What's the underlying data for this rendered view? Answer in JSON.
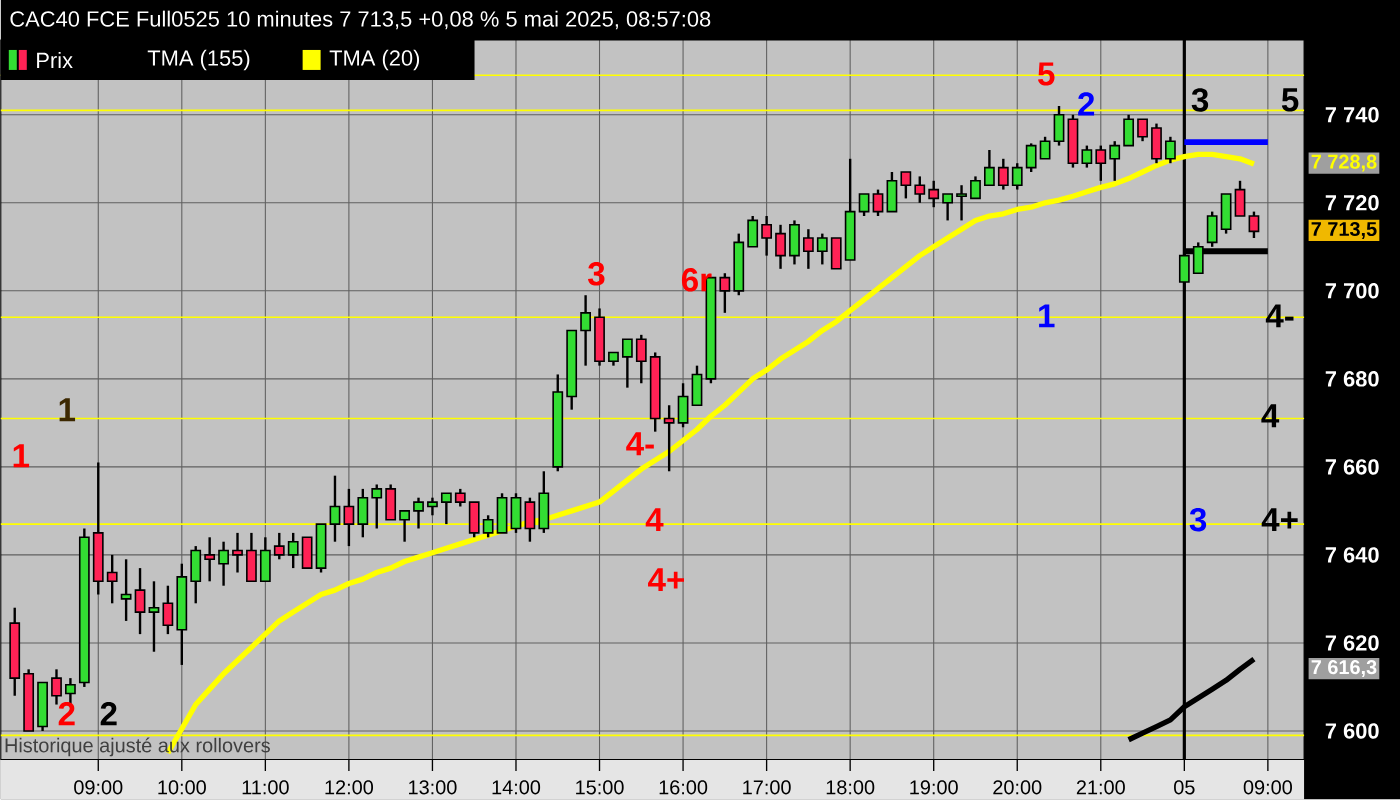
{
  "chart_data": {
    "type": "candlestick",
    "title": "CAC40 FCE Full0525 10 minutes 7 713,5 +0,08 % 5 mai 2025, 08:57:08",
    "categories": [
      null,
      null,
      null,
      null,
      null,
      null,
      "09:00",
      null,
      null,
      null,
      null,
      null,
      "10:00",
      null,
      null,
      null,
      null,
      null,
      "11:00",
      null,
      null,
      null,
      null,
      null,
      "12:00",
      null,
      null,
      null,
      null,
      null,
      "13:00",
      null,
      null,
      null,
      null,
      null,
      "14:00",
      null,
      null,
      null,
      null,
      null,
      "15:00",
      null,
      null,
      null,
      null,
      null,
      "16:00",
      null,
      null,
      null,
      null,
      null,
      "17:00",
      null,
      null,
      null,
      null,
      null,
      "18:00",
      null,
      null,
      null,
      null,
      null,
      "19:00",
      null,
      null,
      null,
      null,
      null,
      "20:00",
      null,
      null,
      null,
      null,
      null,
      "21:00",
      null,
      null,
      null,
      null,
      null,
      "05",
      null,
      null,
      null,
      null,
      null,
      "09:00"
    ],
    "series": [
      {
        "name": "Prix",
        "ohlc": [
          [
            7624.5,
            7628,
            7608,
            7612
          ],
          [
            7613,
            7614,
            7600,
            7600
          ],
          [
            7601,
            7611,
            7600,
            7611
          ],
          [
            7612,
            7614,
            7606,
            7608
          ],
          [
            7608.5,
            7612,
            7606,
            7610.5
          ],
          [
            7611,
            7646,
            7610,
            7644
          ],
          [
            7645,
            7661,
            7631,
            7634
          ],
          [
            7636,
            7640,
            7629,
            7634
          ],
          [
            7630,
            7639,
            7625,
            7631
          ],
          [
            7632,
            7637,
            7622,
            7627
          ],
          [
            7627,
            7634,
            7618,
            7628
          ],
          [
            7629,
            7633,
            7622,
            7624
          ],
          [
            7623,
            7638,
            7615,
            7635
          ],
          [
            7634,
            7642,
            7629,
            7641
          ],
          [
            7640,
            7644,
            7634,
            7639
          ],
          [
            7638,
            7643,
            7633,
            7641
          ],
          [
            7641,
            7645,
            7636,
            7640
          ],
          [
            7641,
            7645,
            7634,
            7634
          ],
          [
            7634,
            7644,
            7634,
            7641
          ],
          [
            7642,
            7645,
            7639,
            7640
          ],
          [
            7640,
            7645,
            7637,
            7643
          ],
          [
            7644,
            7644,
            7637,
            7637
          ],
          [
            7637,
            7647,
            7636,
            7647
          ],
          [
            7647,
            7658,
            7643,
            7651
          ],
          [
            7651,
            7655,
            7642,
            7647
          ],
          [
            7647,
            7655,
            7644,
            7653
          ],
          [
            7653,
            7656,
            7646,
            7655
          ],
          [
            7655,
            7656,
            7648,
            7648
          ],
          [
            7648,
            7650,
            7643,
            7650
          ],
          [
            7650,
            7653,
            7646,
            7652
          ],
          [
            7651,
            7653,
            7649,
            7652
          ],
          [
            7652,
            7654,
            7647,
            7654
          ],
          [
            7654,
            7655,
            7651,
            7652
          ],
          [
            7652,
            7652,
            7644,
            7645
          ],
          [
            7645,
            7649,
            7644,
            7648
          ],
          [
            7645,
            7654,
            7645,
            7653
          ],
          [
            7646,
            7654,
            7645,
            7653
          ],
          [
            7652,
            7653,
            7643,
            7646
          ],
          [
            7646,
            7659,
            7645,
            7654
          ],
          [
            7660,
            7681,
            7659,
            7677
          ],
          [
            7676,
            7691,
            7673,
            7691
          ],
          [
            7691,
            7699,
            7683,
            7695
          ],
          [
            7694,
            7696,
            7683,
            7684
          ],
          [
            7684,
            7686,
            7683,
            7686
          ],
          [
            7685,
            7689,
            7678,
            7689
          ],
          [
            7689,
            7690,
            7679,
            7684
          ],
          [
            7685,
            7686,
            7668,
            7671
          ],
          [
            7671,
            7674,
            7659,
            7670
          ],
          [
            7670,
            7679,
            7669,
            7676
          ],
          [
            7674,
            7683,
            7674,
            7681
          ],
          [
            7680,
            7703,
            7679,
            7703
          ],
          [
            7703,
            7704,
            7695,
            7700
          ],
          [
            7700,
            7713,
            7699,
            7711
          ],
          [
            7710,
            7717,
            7710,
            7716
          ],
          [
            7715,
            7717,
            7708,
            7712
          ],
          [
            7713,
            7715,
            7705,
            7708
          ],
          [
            7708,
            7716,
            7706,
            7715
          ],
          [
            7712,
            7714,
            7705,
            7709
          ],
          [
            7709,
            7713,
            7706,
            7712
          ],
          [
            7712,
            7712,
            7705,
            7705
          ],
          [
            7707,
            7730,
            7707,
            7718
          ],
          [
            7718,
            7722,
            7717,
            7722
          ],
          [
            7722,
            7723,
            7717,
            7718
          ],
          [
            7718,
            7727,
            7718,
            7725
          ],
          [
            7727,
            7727,
            7721,
            7724
          ],
          [
            7724,
            7726,
            7720,
            7722
          ],
          [
            7723,
            7725,
            7719,
            7721
          ],
          [
            7720,
            7722,
            7716,
            7722
          ],
          [
            7721.5,
            7724,
            7716,
            7722
          ],
          [
            7721,
            7726,
            7721,
            7725
          ],
          [
            7724,
            7732,
            7724,
            7728
          ],
          [
            7728,
            7730,
            7723,
            7724
          ],
          [
            7724,
            7729,
            7723,
            7728
          ],
          [
            7728,
            7733.5,
            7727,
            7733
          ],
          [
            7730,
            7735,
            7730,
            7734
          ],
          [
            7734,
            7742,
            7733,
            7740
          ],
          [
            7739,
            7740,
            7728,
            7729
          ],
          [
            7729,
            7733,
            7728,
            7732
          ],
          [
            7732,
            7733,
            7725,
            7729
          ],
          [
            7730,
            7734,
            7725,
            7733
          ],
          [
            7733,
            7740,
            7733,
            7739
          ],
          [
            7739,
            7739,
            7734,
            7735
          ],
          [
            7737,
            7738,
            7729,
            7730
          ],
          [
            7730,
            7735,
            7729,
            7734
          ],
          [
            7702,
            7716,
            7700,
            7708
          ],
          [
            7704,
            7711,
            7704,
            7710
          ],
          [
            7711,
            7718,
            7710,
            7717
          ],
          [
            7714,
            7722,
            7713,
            7722
          ],
          [
            7723,
            7725,
            7717,
            7717
          ],
          [
            7717,
            7718,
            7712,
            7713.5
          ],
          null
        ],
        "colors": [
          "#ff2255",
          "#ff2255",
          "#33dd33",
          "#ff2255",
          "#33dd33",
          "#33dd33",
          "#ff2255",
          "#ff2255",
          "#33dd33",
          "#ff2255",
          "#33dd33",
          "#ff2255",
          "#33dd33",
          "#33dd33",
          "#ff2255",
          "#33dd33",
          "#ff2255",
          "#ff2255",
          "#33dd33",
          "#ff2255",
          "#33dd33",
          "#ff2255",
          "#33dd33",
          "#33dd33",
          "#ff2255",
          "#33dd33",
          "#33dd33",
          "#ff2255",
          "#33dd33",
          "#33dd33",
          "#33dd33",
          "#33dd33",
          "#ff2255",
          "#ff2255",
          "#33dd33",
          "#33dd33",
          "#33dd33",
          "#ff2255",
          "#33dd33",
          "#33dd33",
          "#33dd33",
          "#33dd33",
          "#ff2255",
          "#33dd33",
          "#33dd33",
          "#ff2255",
          "#ff2255",
          "#ff2255",
          "#33dd33",
          "#33dd33",
          "#33dd33",
          "#ff2255",
          "#33dd33",
          "#33dd33",
          "#ff2255",
          "#ff2255",
          "#33dd33",
          "#ff2255",
          "#33dd33",
          "#ff2255",
          "#33dd33",
          "#33dd33",
          "#ff2255",
          "#33dd33",
          "#ff2255",
          "#ff2255",
          "#ff2255",
          "#33dd33",
          "#33dd33",
          "#33dd33",
          "#33dd33",
          "#ff2255",
          "#33dd33",
          "#33dd33",
          "#33dd33",
          "#33dd33",
          "#ff2255",
          "#33dd33",
          "#ff2255",
          "#33dd33",
          "#33dd33",
          "#ff2255",
          "#ff2255",
          "#33dd33",
          "#33dd33",
          "#33dd33",
          "#33dd33",
          "#33dd33",
          "#ff2255",
          "#ff2255",
          null
        ]
      },
      {
        "name": "TMA (155)",
        "type": "line",
        "color": "#000000",
        "values": [
          null,
          null,
          null,
          null,
          null,
          null,
          null,
          null,
          null,
          null,
          null,
          null,
          null,
          null,
          null,
          null,
          null,
          null,
          null,
          null,
          null,
          null,
          null,
          null,
          null,
          null,
          null,
          null,
          null,
          null,
          null,
          null,
          null,
          null,
          null,
          null,
          null,
          null,
          null,
          null,
          null,
          null,
          null,
          null,
          null,
          null,
          null,
          null,
          null,
          null,
          null,
          null,
          null,
          null,
          null,
          null,
          null,
          null,
          null,
          null,
          null,
          null,
          null,
          null,
          null,
          null,
          null,
          null,
          null,
          null,
          null,
          null,
          null,
          null,
          null,
          null,
          null,
          null,
          null,
          null,
          7598,
          7599.5,
          7601,
          7602.5,
          7605.5,
          7607.5,
          7609.5,
          7611.5,
          7614,
          7616.3,
          null
        ]
      },
      {
        "name": "TMA (20)",
        "type": "line",
        "color": "#ffff00",
        "values": [
          null,
          null,
          null,
          null,
          null,
          null,
          null,
          null,
          null,
          null,
          null,
          7595,
          7600.5,
          7606,
          7609.5,
          7613,
          7616,
          7619,
          7622,
          7625,
          7627,
          7629,
          7631,
          7632,
          7633.5,
          7634.5,
          7636,
          7637,
          7638.5,
          7639.5,
          7640.5,
          7641.5,
          7642.5,
          7643.5,
          7644.5,
          7645.5,
          7646.5,
          7647.5,
          7648,
          7649,
          7650,
          7651,
          7652,
          7654.5,
          7657,
          7659.5,
          7661.5,
          7663.5,
          7666,
          7668.5,
          7671.5,
          7674,
          7677,
          7680,
          7682,
          7684.5,
          7686.5,
          7688.5,
          7691,
          7693,
          7695.5,
          7698,
          7700.5,
          7703,
          7705.5,
          7708,
          7710,
          7712,
          7714,
          7716,
          7717,
          7717.5,
          7718.5,
          7719,
          7720,
          7720.6,
          7721.5,
          7722.5,
          7723.5,
          7724.3,
          7725.5,
          7727,
          7728.5,
          7729.7,
          7730.5,
          7731,
          7731,
          7730.5,
          7730,
          7728.8,
          null
        ]
      },
      {
        "type": "line",
        "color": "#0000ff",
        "values": [
          null,
          null,
          null,
          null,
          null,
          null,
          null,
          null,
          null,
          null,
          null,
          null,
          null,
          null,
          null,
          null,
          null,
          null,
          null,
          null,
          null,
          null,
          null,
          null,
          null,
          null,
          null,
          null,
          null,
          null,
          null,
          null,
          null,
          null,
          null,
          null,
          null,
          null,
          null,
          null,
          null,
          null,
          null,
          null,
          null,
          null,
          null,
          null,
          null,
          null,
          null,
          null,
          null,
          null,
          null,
          null,
          null,
          null,
          null,
          null,
          null,
          null,
          null,
          null,
          null,
          null,
          null,
          null,
          null,
          null,
          null,
          null,
          null,
          null,
          null,
          null,
          null,
          null,
          null,
          null,
          null,
          null,
          null,
          null,
          7733.8,
          7733.8,
          7733.8,
          7733.8,
          7733.8,
          7733.8,
          7733.8
        ]
      },
      {
        "type": "line",
        "color": "#000000",
        "values": [
          null,
          null,
          null,
          null,
          null,
          null,
          null,
          null,
          null,
          null,
          null,
          null,
          null,
          null,
          null,
          null,
          null,
          null,
          null,
          null,
          null,
          null,
          null,
          null,
          null,
          null,
          null,
          null,
          null,
          null,
          null,
          null,
          null,
          null,
          null,
          null,
          null,
          null,
          null,
          null,
          null,
          null,
          null,
          null,
          null,
          null,
          null,
          null,
          null,
          null,
          null,
          null,
          null,
          null,
          null,
          null,
          null,
          null,
          null,
          null,
          null,
          null,
          null,
          null,
          null,
          null,
          null,
          null,
          null,
          null,
          null,
          null,
          null,
          null,
          null,
          null,
          null,
          null,
          null,
          null,
          null,
          null,
          null,
          null,
          7709,
          7709,
          7709,
          7709,
          7709,
          7709,
          7709
        ]
      }
    ],
    "ylim": [
      7593.5,
      7757
    ],
    "yticks": [
      {
        "value": 7600,
        "label": "7 600"
      },
      {
        "value": 7620,
        "label": "7 620"
      },
      {
        "value": 7640,
        "label": "7 640"
      },
      {
        "value": 7660,
        "label": "7 660"
      },
      {
        "value": 7680,
        "label": "7 680"
      },
      {
        "value": 7700,
        "label": "7 700"
      },
      {
        "value": 7720,
        "label": "7 720"
      },
      {
        "value": 7740,
        "label": "7 740"
      }
    ],
    "grid": true,
    "legend": "top left",
    "ref_lines": [
      {
        "axis": "y",
        "value": 7749,
        "color": "#ffff00"
      },
      {
        "axis": "y",
        "value": 7741,
        "color": "#ffff00"
      },
      {
        "axis": "y",
        "value": 7694,
        "color": "#ffff00"
      },
      {
        "axis": "y",
        "value": 7671,
        "color": "#ffff00"
      },
      {
        "axis": "y",
        "value": 7647,
        "color": "#ffff00"
      },
      {
        "axis": "y",
        "value": 7599,
        "color": "#ffff00"
      },
      {
        "axis": "x",
        "value": "05",
        "color": "#000000"
      }
    ],
    "annotations": [
      "1",
      "1",
      "2",
      "2",
      "3",
      "6r",
      "4-",
      "4",
      "4+",
      "5",
      "2",
      "1",
      "3",
      "3",
      "5",
      "4-",
      "4",
      "4+",
      "7 728,8",
      "7 713,5",
      "7 616,3",
      "Historique ajusté aux rollovers"
    ]
  }
}
